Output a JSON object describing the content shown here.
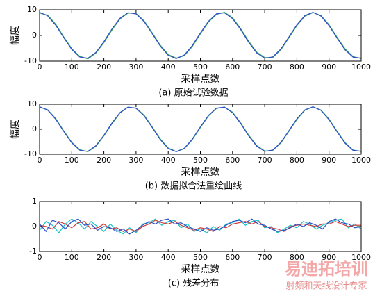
{
  "chart_data": [
    {
      "type": "line",
      "caption": "(a) 原始试验数据",
      "xlabel": "采样点数",
      "ylabel": "幅度",
      "x": [
        0,
        25,
        50,
        75,
        100,
        125,
        150,
        175,
        200,
        225,
        250,
        275,
        300,
        325,
        350,
        375,
        400,
        425,
        450,
        475,
        500,
        525,
        550,
        575,
        600,
        625,
        650,
        675,
        700,
        725,
        750,
        775,
        800,
        825,
        850,
        875,
        900,
        925,
        950,
        975,
        1000
      ],
      "series": [
        {
          "color": "#2b4fc4",
          "values": [
            9,
            7.65,
            4.0,
            -0.85,
            -5.44,
            -8.4,
            -8.84,
            -6.62,
            -2.42,
            2.51,
            6.69,
            8.86,
            8.37,
            5.37,
            0.75,
            -4.09,
            -7.7,
            -9.0,
            -7.6,
            -3.92,
            0.94,
            5.52,
            8.44,
            8.82,
            6.56,
            2.33,
            -2.6,
            -6.75,
            -8.87,
            -8.33,
            -5.29,
            -0.66,
            4.17,
            7.75,
            9.0,
            7.55,
            3.83,
            -1.03,
            -5.59,
            -8.47,
            -8.8
          ]
        },
        {
          "color": "#3aa36b",
          "values": [
            8.7,
            7.9,
            4.4,
            -0.5,
            -5.1,
            -8.1,
            -9.1,
            -6.9,
            -2.8,
            2.1,
            6.4,
            8.7,
            8.6,
            5.7,
            1.1,
            -3.7,
            -7.4,
            -8.8,
            -7.9,
            -4.3,
            0.6,
            5.2,
            8.2,
            9.0,
            6.9,
            2.7,
            -2.2,
            -6.4,
            -8.6,
            -8.6,
            -5.6,
            -1.0,
            3.8,
            7.5,
            8.9,
            7.8,
            4.2,
            -0.7,
            -5.2,
            -8.2,
            -9.0
          ]
        }
      ],
      "xlim": [
        0,
        1000
      ],
      "ylim": [
        -10,
        10
      ],
      "xticks": [
        0,
        100,
        200,
        300,
        400,
        500,
        600,
        700,
        800,
        900,
        1000
      ],
      "yticks": [
        -10,
        0,
        10
      ]
    },
    {
      "type": "line",
      "caption": "(b) 数据拟合法重绘曲线",
      "xlabel": "采样点数",
      "ylabel": "幅度",
      "x": [
        0,
        25,
        50,
        75,
        100,
        125,
        150,
        175,
        200,
        225,
        250,
        275,
        300,
        325,
        350,
        375,
        400,
        425,
        450,
        475,
        500,
        525,
        550,
        575,
        600,
        625,
        650,
        675,
        700,
        725,
        750,
        775,
        800,
        825,
        850,
        875,
        900,
        925,
        950,
        975,
        1000
      ],
      "series": [
        {
          "color": "#2b4fc4",
          "values": [
            9,
            7.65,
            4.0,
            -0.85,
            -5.44,
            -8.4,
            -8.84,
            -6.62,
            -2.42,
            2.51,
            6.69,
            8.86,
            8.37,
            5.37,
            0.75,
            -4.09,
            -7.7,
            -9.0,
            -7.6,
            -3.92,
            0.94,
            5.52,
            8.44,
            8.82,
            6.56,
            2.33,
            -2.6,
            -6.75,
            -8.87,
            -8.33,
            -5.29,
            -0.66,
            4.17,
            7.75,
            9.0,
            7.55,
            3.83,
            -1.03,
            -5.59,
            -8.47,
            -8.8
          ]
        },
        {
          "color": "#3aa36b",
          "values": [
            8.8,
            7.8,
            4.3,
            -0.6,
            -5.2,
            -8.2,
            -9.0,
            -6.8,
            -2.7,
            2.2,
            6.5,
            8.8,
            8.5,
            5.6,
            1.0,
            -3.8,
            -7.5,
            -8.9,
            -7.8,
            -4.2,
            0.7,
            5.3,
            8.3,
            8.9,
            6.8,
            2.6,
            -2.3,
            -6.5,
            -8.7,
            -8.5,
            -5.5,
            -0.9,
            3.9,
            7.6,
            8.9,
            7.7,
            4.1,
            -0.8,
            -5.3,
            -8.3,
            -8.9
          ]
        }
      ],
      "xlim": [
        0,
        1000
      ],
      "ylim": [
        -10,
        10
      ],
      "xticks": [
        0,
        100,
        200,
        300,
        400,
        500,
        600,
        700,
        800,
        900,
        1000
      ],
      "yticks": [
        -10,
        0,
        10
      ]
    },
    {
      "type": "line",
      "caption": "(c) 残差分布",
      "xlabel": "采样点数",
      "x": [
        0,
        20,
        40,
        60,
        80,
        100,
        120,
        140,
        160,
        180,
        200,
        220,
        240,
        260,
        280,
        300,
        320,
        340,
        360,
        380,
        400,
        420,
        440,
        460,
        480,
        500,
        520,
        540,
        560,
        580,
        600,
        620,
        640,
        660,
        680,
        700,
        720,
        740,
        760,
        780,
        800,
        820,
        840,
        860,
        880,
        900,
        920,
        940,
        960,
        980,
        1000
      ],
      "series": [
        {
          "color": "#2b4fc4",
          "values": [
            0.1,
            -0.2,
            0.25,
            0.15,
            -0.1,
            0.2,
            0.3,
            0.05,
            0.1,
            -0.15,
            0.0,
            -0.05,
            -0.2,
            -0.1,
            -0.3,
            -0.15,
            0.05,
            0.2,
            0.1,
            0.25,
            0.3,
            0.1,
            0.15,
            0.0,
            -0.1,
            -0.2,
            -0.05,
            -0.15,
            -0.1,
            0.05,
            0.2,
            0.25,
            0.15,
            0.3,
            0.1,
            0.05,
            -0.1,
            -0.2,
            -0.15,
            -0.05,
            0.1,
            0.0,
            0.15,
            0.05,
            -0.1,
            0.2,
            0.3,
            0.15,
            0.1,
            -0.05,
            0.0
          ]
        },
        {
          "color": "#d23a3a",
          "values": [
            0.05,
            0.0,
            -0.1,
            0.2,
            0.1,
            -0.05,
            0.15,
            0.2,
            -0.1,
            -0.05,
            0.1,
            -0.1,
            -0.05,
            -0.2,
            -0.1,
            -0.2,
            0.0,
            0.1,
            0.25,
            0.15,
            0.1,
            0.2,
            0.05,
            -0.05,
            -0.15,
            -0.05,
            -0.1,
            -0.2,
            0.0,
            -0.05,
            0.1,
            0.15,
            0.2,
            0.1,
            0.2,
            0.0,
            -0.05,
            -0.1,
            -0.2,
            0.0,
            0.05,
            0.1,
            0.05,
            0.0,
            0.1,
            0.1,
            0.2,
            0.1,
            0.0,
            0.05,
            0.05
          ]
        },
        {
          "color": "#17c4c4",
          "values": [
            -0.15,
            0.2,
            0.05,
            -0.25,
            0.1,
            0.3,
            0.15,
            -0.1,
            0.2,
            0.0,
            -0.2,
            0.1,
            -0.15,
            -0.3,
            -0.05,
            -0.25,
            0.1,
            0.15,
            0.3,
            0.05,
            0.2,
            0.25,
            -0.05,
            0.1,
            -0.2,
            -0.1,
            -0.25,
            0.0,
            -0.15,
            0.1,
            0.15,
            0.3,
            0.05,
            0.2,
            0.25,
            -0.05,
            0.0,
            -0.25,
            -0.1,
            0.05,
            -0.05,
            0.2,
            0.1,
            -0.1,
            0.05,
            0.15,
            0.25,
            0.3,
            -0.05,
            0.1,
            -0.1
          ]
        }
      ],
      "xlim": [
        0,
        1000
      ],
      "ylim": [
        -1,
        1
      ],
      "xticks": [
        0,
        100,
        200,
        300,
        400,
        500,
        600,
        700,
        800,
        900,
        1000
      ],
      "yticks": [
        -1,
        0,
        1
      ]
    }
  ],
  "watermark": {
    "title": "易迪拓培训",
    "subtitle": "射频和天线设计专家"
  }
}
